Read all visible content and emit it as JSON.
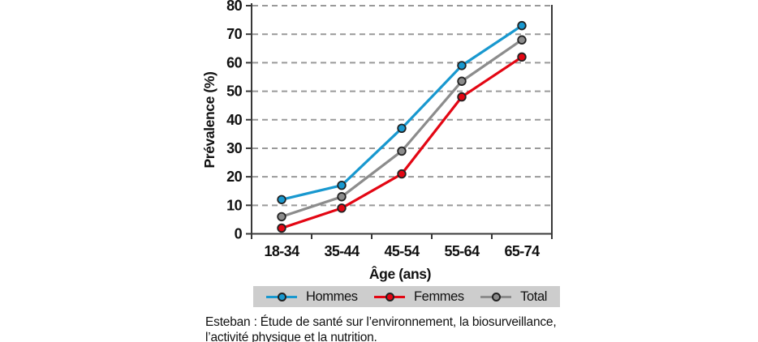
{
  "chart_data": {
    "type": "line",
    "title": "",
    "xlabel": "Âge (ans)",
    "ylabel": "Prévalence (%)",
    "categories": [
      "18-34",
      "35-44",
      "45-54",
      "55-64",
      "65-74"
    ],
    "series": [
      {
        "name": "Hommes",
        "color": "#1898cf",
        "values": [
          12,
          17,
          37,
          59,
          73
        ]
      },
      {
        "name": "Femmes",
        "color": "#e30613",
        "values": [
          2,
          9,
          21,
          48,
          62
        ]
      },
      {
        "name": "Total",
        "color": "#8c8c8c",
        "values": [
          6,
          13,
          29,
          53.5,
          68
        ]
      }
    ],
    "ylim": [
      0,
      80
    ],
    "ytick_step": 10,
    "grid": "horizontal-dashed",
    "gridline_color": "#999999",
    "axis_color": "#383838",
    "marker": "circle",
    "marker_outline_color": "#222222",
    "legend_position": "bottom",
    "legend_background": "#cdcdcd"
  },
  "caption": {
    "line1": "Esteban : Étude de santé sur l’environnement, la biosurveillance,",
    "line2": "l’activité physique et la nutrition."
  }
}
